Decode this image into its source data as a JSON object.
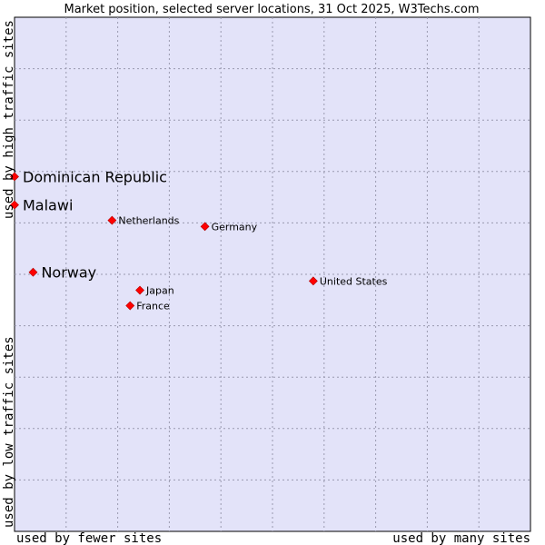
{
  "chart_data": {
    "type": "scatter",
    "title": "Market position, selected server locations, 31 Oct 2025, W3Techs.com",
    "xlabel_left": "used by fewer sites",
    "xlabel_right": "used by many sites",
    "ylabel_bottom": "used by low traffic sites",
    "ylabel_top": "used by high traffic sites",
    "grid": true,
    "xlim": [
      0,
      10
    ],
    "ylim": [
      0,
      10
    ],
    "marker_color": "#ff0000",
    "plot_background": "#e3e3f9",
    "points": [
      {
        "name": "Dominican Republic",
        "x": 0.0,
        "y": 6.9,
        "emphasis": true
      },
      {
        "name": "Malawi",
        "x": 0.0,
        "y": 6.35,
        "emphasis": true
      },
      {
        "name": "Netherlands",
        "x": 1.89,
        "y": 6.05,
        "emphasis": false
      },
      {
        "name": "Germany",
        "x": 3.69,
        "y": 5.93,
        "emphasis": false
      },
      {
        "name": "Norway",
        "x": 0.36,
        "y": 5.04,
        "emphasis": true
      },
      {
        "name": "United States",
        "x": 5.79,
        "y": 4.87,
        "emphasis": false
      },
      {
        "name": "Japan",
        "x": 2.43,
        "y": 4.69,
        "emphasis": false
      },
      {
        "name": "France",
        "x": 2.24,
        "y": 4.39,
        "emphasis": false
      }
    ]
  }
}
